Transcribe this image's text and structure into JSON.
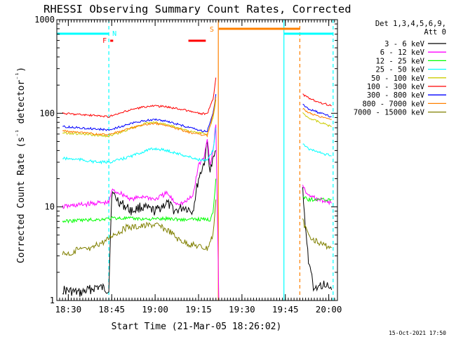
{
  "chart_data": {
    "type": "line",
    "title": "RHESSI Observing Summary Count Rates, Corrected",
    "xlabel": "Start Time (21-Mar-05 18:26:02)",
    "ylabel": "Corrected Count Rate (s⁻¹ detector⁻¹)",
    "yscale": "log",
    "ylim": [
      1,
      1000
    ],
    "xlim": [
      "18:26:02",
      "20:03:00"
    ],
    "yticks": [
      "1",
      "10",
      "100",
      "1000"
    ],
    "xticks": [
      {
        "t": "18:30",
        "label": "18:30"
      },
      {
        "t": "18:45",
        "label": "18:45"
      },
      {
        "t": "19:00",
        "label": "19:00"
      },
      {
        "t": "19:15",
        "label": "19:15"
      },
      {
        "t": "19:30",
        "label": "19:30"
      },
      {
        "t": "19:45",
        "label": "19:45"
      },
      {
        "t": "20:00",
        "label": "20:00"
      }
    ],
    "legend": {
      "header": [
        "Det 1,3,4,5,6,9,",
        "Att 0"
      ],
      "placement": "right"
    },
    "series": [
      {
        "name": "3 - 6 keV",
        "color": "#000000",
        "points": [
          [
            "18:28",
            1.3
          ],
          [
            "18:34",
            1.2
          ],
          [
            "18:40",
            1.4
          ],
          [
            "18:44",
            1.3
          ],
          [
            "18:45",
            14
          ],
          [
            "18:48",
            11
          ],
          [
            "18:52",
            9
          ],
          [
            "18:55",
            10
          ],
          [
            "19:00",
            9
          ],
          [
            "19:04",
            11
          ],
          [
            "19:07",
            9
          ],
          [
            "19:10",
            10
          ],
          [
            "19:13",
            9
          ],
          [
            "19:15",
            20
          ],
          [
            "19:17",
            30
          ],
          [
            "19:18",
            48
          ],
          [
            "19:19",
            24
          ],
          [
            "19:21",
            40
          ]
        ],
        "points2": [
          [
            "19:51",
            15
          ],
          [
            "19:53",
            2.5
          ],
          [
            "19:55",
            1.3
          ],
          [
            "19:58",
            1.5
          ],
          [
            "20:01",
            1.3
          ]
        ]
      },
      {
        "name": "6 - 12 keV",
        "color": "#ff00ff",
        "points": [
          [
            "18:28",
            10
          ],
          [
            "18:34",
            10.5
          ],
          [
            "18:40",
            11
          ],
          [
            "18:44",
            11
          ],
          [
            "18:45",
            15
          ],
          [
            "18:48",
            14
          ],
          [
            "18:52",
            12
          ],
          [
            "18:56",
            13
          ],
          [
            "19:00",
            12
          ],
          [
            "19:04",
            14
          ],
          [
            "19:07",
            11
          ],
          [
            "19:10",
            11
          ],
          [
            "19:13",
            13
          ],
          [
            "19:15",
            28
          ],
          [
            "19:17",
            34
          ],
          [
            "19:18",
            56
          ],
          [
            "19:19",
            28
          ],
          [
            "19:20",
            40
          ],
          [
            "19:21",
            80
          ],
          [
            "19:22",
            1
          ]
        ],
        "points2": [
          [
            "19:51",
            17
          ],
          [
            "19:53",
            13
          ],
          [
            "19:57",
            12
          ],
          [
            "20:01",
            11
          ]
        ]
      },
      {
        "name": "12 - 25 keV",
        "color": "#00ff00",
        "points": [
          [
            "18:28",
            7
          ],
          [
            "18:34",
            7.2
          ],
          [
            "18:40",
            7.3
          ],
          [
            "18:44",
            7.5
          ],
          [
            "18:46",
            7.6
          ],
          [
            "18:52",
            7.5
          ],
          [
            "19:00",
            7.4
          ],
          [
            "19:05",
            7.5
          ],
          [
            "19:10",
            7.3
          ],
          [
            "19:15",
            7.4
          ],
          [
            "19:19",
            7.3
          ],
          [
            "19:20",
            9
          ],
          [
            "19:21",
            20
          ]
        ],
        "points2": [
          [
            "19:51",
            13
          ],
          [
            "19:53",
            12
          ],
          [
            "19:57",
            12
          ],
          [
            "20:01",
            12
          ]
        ]
      },
      {
        "name": "25 - 50 keV",
        "color": "#00ffff",
        "points": [
          [
            "18:28",
            33
          ],
          [
            "18:34",
            32
          ],
          [
            "18:40",
            30
          ],
          [
            "18:44",
            30
          ],
          [
            "18:48",
            32
          ],
          [
            "18:52",
            35
          ],
          [
            "18:57",
            40
          ],
          [
            "19:00",
            42
          ],
          [
            "19:04",
            40
          ],
          [
            "19:08",
            37
          ],
          [
            "19:12",
            34
          ],
          [
            "19:15",
            32
          ],
          [
            "19:18",
            31
          ],
          [
            "19:20",
            40
          ],
          [
            "19:21",
            70
          ]
        ],
        "points2": [
          [
            "19:51",
            48
          ],
          [
            "19:53",
            42
          ],
          [
            "19:57",
            38
          ],
          [
            "20:01",
            35
          ]
        ]
      },
      {
        "name": "50 - 100 keV",
        "color": "#cccc00",
        "points": [
          [
            "18:28",
            62
          ],
          [
            "18:34",
            60
          ],
          [
            "18:40",
            58
          ],
          [
            "18:44",
            57
          ],
          [
            "18:48",
            62
          ],
          [
            "18:52",
            70
          ],
          [
            "18:57",
            78
          ],
          [
            "19:00",
            80
          ],
          [
            "19:04",
            76
          ],
          [
            "19:08",
            70
          ],
          [
            "19:12",
            64
          ],
          [
            "19:15",
            62
          ],
          [
            "19:18",
            60
          ],
          [
            "19:20",
            90
          ],
          [
            "19:21",
            140
          ]
        ],
        "points2": [
          [
            "19:51",
            100
          ],
          [
            "19:53",
            90
          ],
          [
            "19:57",
            80
          ],
          [
            "20:01",
            72
          ]
        ]
      },
      {
        "name": "100 - 300 keV",
        "color": "#ff0000",
        "points": [
          [
            "18:28",
            100
          ],
          [
            "18:34",
            97
          ],
          [
            "18:40",
            94
          ],
          [
            "18:44",
            92
          ],
          [
            "18:48",
            100
          ],
          [
            "18:52",
            110
          ],
          [
            "18:57",
            118
          ],
          [
            "19:00",
            120
          ],
          [
            "19:04",
            117
          ],
          [
            "19:08",
            112
          ],
          [
            "19:12",
            105
          ],
          [
            "19:15",
            100
          ],
          [
            "19:18",
            98
          ],
          [
            "19:20",
            140
          ],
          [
            "19:21",
            240
          ]
        ],
        "points2": [
          [
            "19:51",
            160
          ],
          [
            "19:53",
            145
          ],
          [
            "19:57",
            130
          ],
          [
            "20:01",
            120
          ]
        ]
      },
      {
        "name": "300 - 800 keV",
        "color": "#0000ff",
        "points": [
          [
            "18:28",
            72
          ],
          [
            "18:34",
            70
          ],
          [
            "18:40",
            68
          ],
          [
            "18:44",
            66
          ],
          [
            "18:48",
            72
          ],
          [
            "18:52",
            78
          ],
          [
            "18:57",
            84
          ],
          [
            "19:00",
            86
          ],
          [
            "19:04",
            82
          ],
          [
            "19:08",
            76
          ],
          [
            "19:12",
            70
          ],
          [
            "19:15",
            66
          ],
          [
            "19:18",
            64
          ],
          [
            "19:20",
            100
          ],
          [
            "19:21",
            160
          ]
        ],
        "points2": [
          [
            "19:51",
            125
          ],
          [
            "19:53",
            112
          ],
          [
            "19:57",
            100
          ],
          [
            "20:01",
            92
          ]
        ]
      },
      {
        "name": "800 - 7000 keV",
        "color": "#ff8000",
        "points": [
          [
            "18:28",
            65
          ],
          [
            "18:34",
            62
          ],
          [
            "18:40",
            60
          ],
          [
            "18:44",
            59
          ],
          [
            "18:48",
            64
          ],
          [
            "18:52",
            70
          ],
          [
            "18:57",
            76
          ],
          [
            "19:00",
            78
          ],
          [
            "19:04",
            74
          ],
          [
            "19:08",
            68
          ],
          [
            "19:12",
            62
          ],
          [
            "19:15",
            60
          ],
          [
            "19:18",
            58
          ],
          [
            "19:20",
            95
          ],
          [
            "19:21",
            150
          ]
        ],
        "points2": [
          [
            "19:51",
            112
          ],
          [
            "19:53",
            102
          ],
          [
            "19:57",
            92
          ],
          [
            "20:01",
            86
          ]
        ]
      },
      {
        "name": "7000 - 15000 keV",
        "color": "#808000",
        "points": [
          [
            "18:28",
            3.2
          ],
          [
            "18:32",
            3.2
          ],
          [
            "18:33",
            3.5
          ],
          [
            "18:38",
            3.5
          ],
          [
            "18:40",
            4
          ],
          [
            "18:43",
            4.3
          ],
          [
            "18:45",
            5
          ],
          [
            "18:48",
            5.5
          ],
          [
            "18:50",
            6
          ],
          [
            "18:55",
            6.2
          ],
          [
            "19:00",
            6.5
          ],
          [
            "19:05",
            5.5
          ],
          [
            "19:08",
            4.5
          ],
          [
            "19:12",
            4
          ],
          [
            "19:15",
            3.8
          ],
          [
            "19:18",
            3.6
          ],
          [
            "19:20",
            5
          ],
          [
            "19:21",
            12
          ]
        ],
        "points2": [
          [
            "19:51",
            7
          ],
          [
            "19:53",
            5
          ],
          [
            "19:57",
            4
          ],
          [
            "20:01",
            3.7
          ]
        ]
      }
    ],
    "annotations": [
      {
        "type": "vline",
        "t": "18:44:00",
        "color": "#00ffff",
        "style": "dashed"
      },
      {
        "type": "vline",
        "t": "19:44:30",
        "color": "#00ffff",
        "style": "solid"
      },
      {
        "type": "vline",
        "t": "20:01:30",
        "color": "#00ffff",
        "style": "dashed"
      },
      {
        "type": "vline",
        "t": "19:21:50",
        "color": "#ff8000",
        "style": "solid"
      },
      {
        "type": "vline",
        "t": "19:50:00",
        "color": "#ff8000",
        "style": "dashed"
      },
      {
        "type": "bar",
        "t0": "18:26:02",
        "t1": "18:44:00",
        "color": "#00ffff",
        "label": "N"
      },
      {
        "type": "bar",
        "t0": "19:44:30",
        "t1": "20:01:30",
        "color": "#00ffff",
        "label": ""
      },
      {
        "type": "bar",
        "t0": "19:22:00",
        "t1": "19:50:00",
        "color": "#ff8000",
        "label": "S"
      },
      {
        "type": "bar",
        "t0": "18:44:30",
        "t1": "18:45:30",
        "color": "#ff0000",
        "label": "F"
      },
      {
        "type": "bar",
        "t0": "19:11:30",
        "t1": "19:17:30",
        "color": "#ff0000",
        "label": ""
      }
    ]
  },
  "footer_timestamp": "15-Oct-2021 17:50"
}
